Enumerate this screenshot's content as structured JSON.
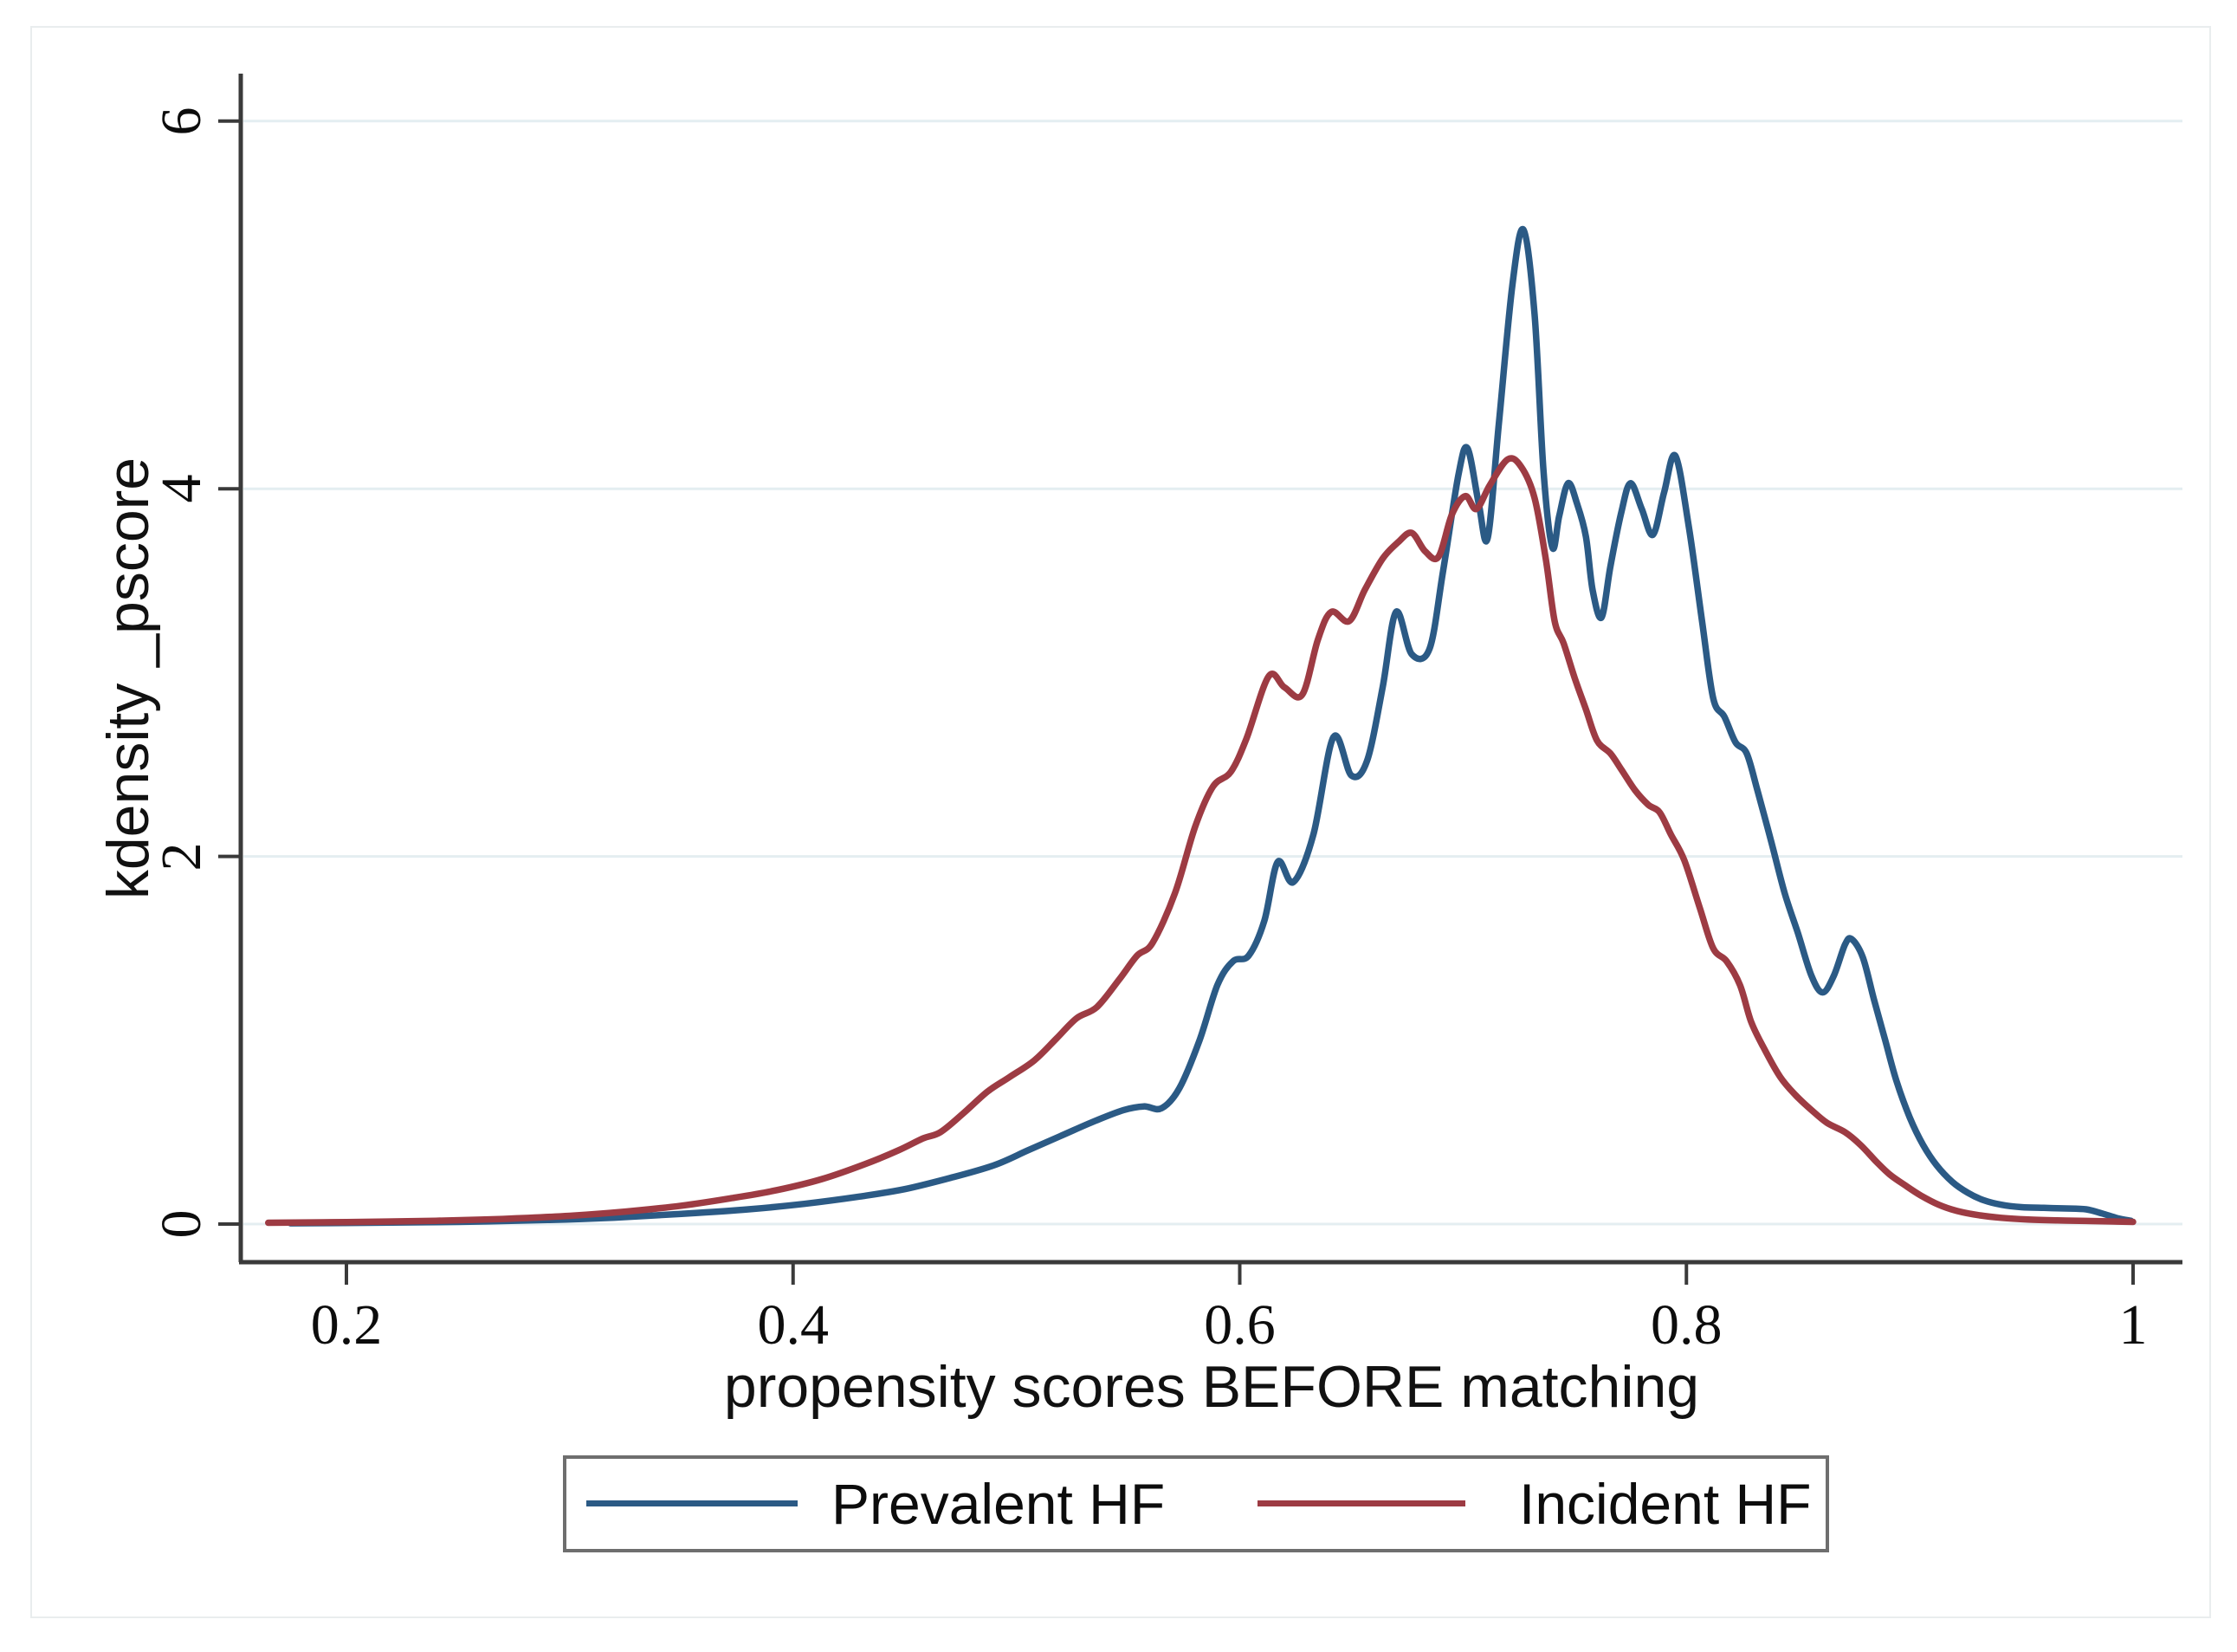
{
  "chart_data": {
    "type": "line",
    "title": "",
    "xlabel": "propensity scores BEFORE matching",
    "ylabel": "kdensity _pscore",
    "x_axis": {
      "min": 0.153,
      "max": 1.022,
      "ticks": [
        0.2,
        0.4,
        0.6,
        0.8,
        1
      ],
      "tick_labels": [
        "0.2",
        "0.4",
        "0.6",
        "0.8",
        "1"
      ]
    },
    "y_axis": {
      "min": 0,
      "max": 6.25,
      "ticks": [
        0,
        2,
        4,
        6
      ],
      "tick_labels": [
        "0",
        "2",
        "4",
        "6"
      ]
    },
    "grid": "horizontal-light",
    "gridline_color": "#e4eef1",
    "axis_color": "#3a3a3a",
    "legend_position": "bottom-center",
    "series": [
      {
        "name": "Prevalent HF",
        "color": "#2b5a85",
        "points": [
          [
            0.175,
            0.004
          ],
          [
            0.21,
            0.007
          ],
          [
            0.25,
            0.012
          ],
          [
            0.29,
            0.022
          ],
          [
            0.32,
            0.035
          ],
          [
            0.35,
            0.055
          ],
          [
            0.38,
            0.08
          ],
          [
            0.405,
            0.11
          ],
          [
            0.43,
            0.15
          ],
          [
            0.45,
            0.19
          ],
          [
            0.47,
            0.25
          ],
          [
            0.49,
            0.32
          ],
          [
            0.505,
            0.4
          ],
          [
            0.52,
            0.48
          ],
          [
            0.535,
            0.56
          ],
          [
            0.548,
            0.62
          ],
          [
            0.557,
            0.64
          ],
          [
            0.565,
            0.63
          ],
          [
            0.573,
            0.74
          ],
          [
            0.582,
            1.0
          ],
          [
            0.59,
            1.3
          ],
          [
            0.597,
            1.43
          ],
          [
            0.604,
            1.46
          ],
          [
            0.611,
            1.65
          ],
          [
            0.617,
            1.97
          ],
          [
            0.624,
            1.86
          ],
          [
            0.633,
            2.12
          ],
          [
            0.642,
            2.65
          ],
          [
            0.65,
            2.44
          ],
          [
            0.657,
            2.52
          ],
          [
            0.664,
            2.92
          ],
          [
            0.67,
            3.33
          ],
          [
            0.677,
            3.1
          ],
          [
            0.685,
            3.13
          ],
          [
            0.691,
            3.55
          ],
          [
            0.698,
            4.08
          ],
          [
            0.702,
            4.22
          ],
          [
            0.707,
            3.92
          ],
          [
            0.711,
            3.73
          ],
          [
            0.716,
            4.35
          ],
          [
            0.722,
            5.1
          ],
          [
            0.727,
            5.41
          ],
          [
            0.732,
            4.95
          ],
          [
            0.736,
            4.1
          ],
          [
            0.74,
            3.68
          ],
          [
            0.743,
            3.85
          ],
          [
            0.747,
            4.03
          ],
          [
            0.751,
            3.92
          ],
          [
            0.755,
            3.74
          ],
          [
            0.758,
            3.45
          ],
          [
            0.762,
            3.3
          ],
          [
            0.766,
            3.58
          ],
          [
            0.771,
            3.88
          ],
          [
            0.775,
            4.03
          ],
          [
            0.78,
            3.89
          ],
          [
            0.785,
            3.75
          ],
          [
            0.79,
            3.98
          ],
          [
            0.795,
            4.18
          ],
          [
            0.801,
            3.8
          ],
          [
            0.807,
            3.28
          ],
          [
            0.812,
            2.86
          ],
          [
            0.817,
            2.76
          ],
          [
            0.822,
            2.62
          ],
          [
            0.827,
            2.56
          ],
          [
            0.832,
            2.35
          ],
          [
            0.838,
            2.08
          ],
          [
            0.844,
            1.8
          ],
          [
            0.85,
            1.58
          ],
          [
            0.856,
            1.35
          ],
          [
            0.861,
            1.26
          ],
          [
            0.866,
            1.35
          ],
          [
            0.871,
            1.52
          ],
          [
            0.874,
            1.55
          ],
          [
            0.879,
            1.45
          ],
          [
            0.884,
            1.22
          ],
          [
            0.889,
            1.0
          ],
          [
            0.894,
            0.78
          ],
          [
            0.9,
            0.58
          ],
          [
            0.906,
            0.43
          ],
          [
            0.912,
            0.32
          ],
          [
            0.919,
            0.23
          ],
          [
            0.926,
            0.17
          ],
          [
            0.933,
            0.13
          ],
          [
            0.941,
            0.105
          ],
          [
            0.95,
            0.092
          ],
          [
            0.96,
            0.088
          ],
          [
            0.97,
            0.085
          ],
          [
            0.979,
            0.08
          ],
          [
            0.986,
            0.058
          ],
          [
            0.993,
            0.032
          ],
          [
            0.999,
            0.018
          ]
        ]
      },
      {
        "name": "Incident HF",
        "color": "#9d3b43",
        "points": [
          [
            0.165,
            0.007
          ],
          [
            0.2,
            0.011
          ],
          [
            0.24,
            0.018
          ],
          [
            0.27,
            0.028
          ],
          [
            0.3,
            0.045
          ],
          [
            0.325,
            0.068
          ],
          [
            0.35,
            0.1
          ],
          [
            0.372,
            0.14
          ],
          [
            0.393,
            0.185
          ],
          [
            0.413,
            0.245
          ],
          [
            0.432,
            0.325
          ],
          [
            0.447,
            0.4
          ],
          [
            0.458,
            0.465
          ],
          [
            0.466,
            0.5
          ],
          [
            0.476,
            0.6
          ],
          [
            0.487,
            0.72
          ],
          [
            0.497,
            0.8
          ],
          [
            0.508,
            0.89
          ],
          [
            0.518,
            1.01
          ],
          [
            0.527,
            1.12
          ],
          [
            0.536,
            1.18
          ],
          [
            0.546,
            1.33
          ],
          [
            0.554,
            1.46
          ],
          [
            0.561,
            1.53
          ],
          [
            0.571,
            1.8
          ],
          [
            0.58,
            2.16
          ],
          [
            0.588,
            2.38
          ],
          [
            0.596,
            2.46
          ],
          [
            0.603,
            2.64
          ],
          [
            0.613,
            2.98
          ],
          [
            0.62,
            2.92
          ],
          [
            0.628,
            2.88
          ],
          [
            0.635,
            3.18
          ],
          [
            0.641,
            3.33
          ],
          [
            0.649,
            3.28
          ],
          [
            0.656,
            3.45
          ],
          [
            0.664,
            3.62
          ],
          [
            0.671,
            3.71
          ],
          [
            0.677,
            3.76
          ],
          [
            0.683,
            3.66
          ],
          [
            0.689,
            3.63
          ],
          [
            0.695,
            3.86
          ],
          [
            0.701,
            3.96
          ],
          [
            0.706,
            3.89
          ],
          [
            0.712,
            4.02
          ],
          [
            0.72,
            4.16
          ],
          [
            0.726,
            4.12
          ],
          [
            0.732,
            3.95
          ],
          [
            0.737,
            3.62
          ],
          [
            0.741,
            3.28
          ],
          [
            0.745,
            3.16
          ],
          [
            0.75,
            2.97
          ],
          [
            0.755,
            2.8
          ],
          [
            0.76,
            2.63
          ],
          [
            0.766,
            2.56
          ],
          [
            0.771,
            2.47
          ],
          [
            0.777,
            2.36
          ],
          [
            0.783,
            2.28
          ],
          [
            0.788,
            2.24
          ],
          [
            0.793,
            2.12
          ],
          [
            0.799,
            1.98
          ],
          [
            0.806,
            1.72
          ],
          [
            0.812,
            1.5
          ],
          [
            0.818,
            1.43
          ],
          [
            0.824,
            1.3
          ],
          [
            0.829,
            1.1
          ],
          [
            0.835,
            0.95
          ],
          [
            0.842,
            0.8
          ],
          [
            0.849,
            0.7
          ],
          [
            0.856,
            0.62
          ],
          [
            0.863,
            0.55
          ],
          [
            0.871,
            0.5
          ],
          [
            0.878,
            0.43
          ],
          [
            0.885,
            0.34
          ],
          [
            0.891,
            0.27
          ],
          [
            0.898,
            0.21
          ],
          [
            0.905,
            0.155
          ],
          [
            0.913,
            0.105
          ],
          [
            0.921,
            0.072
          ],
          [
            0.931,
            0.048
          ],
          [
            0.941,
            0.034
          ],
          [
            0.953,
            0.025
          ],
          [
            0.966,
            0.02
          ],
          [
            0.979,
            0.017
          ],
          [
            0.991,
            0.014
          ],
          [
            1.0,
            0.012
          ]
        ]
      }
    ]
  }
}
